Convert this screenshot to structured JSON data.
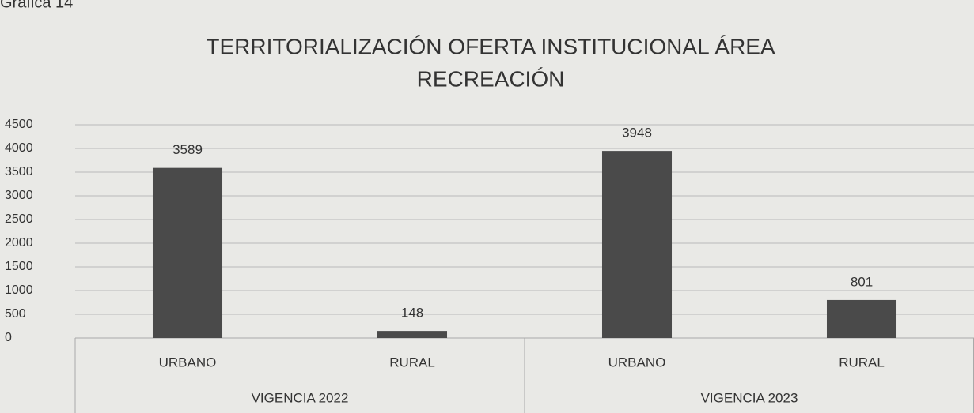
{
  "chart_data": {
    "type": "bar",
    "caption": "Gráfica 14",
    "title": [
      "TERRITORIALIZACIÓN OFERTA INSTITUCIONAL ÁREA",
      "RECREACIÓN"
    ],
    "categories": [
      "URBANO",
      "RURAL",
      "URBANO",
      "RURAL"
    ],
    "groups": [
      "VIGENCIA 2022",
      "VIGENCIA 2023"
    ],
    "values": [
      3589,
      148,
      3948,
      801
    ],
    "color": "#4a4a4a",
    "ylim": [
      0,
      4500
    ],
    "yticks": [
      0,
      500,
      1000,
      1500,
      2000,
      2500,
      3000,
      3500,
      4000,
      4500
    ],
    "grid": true
  }
}
